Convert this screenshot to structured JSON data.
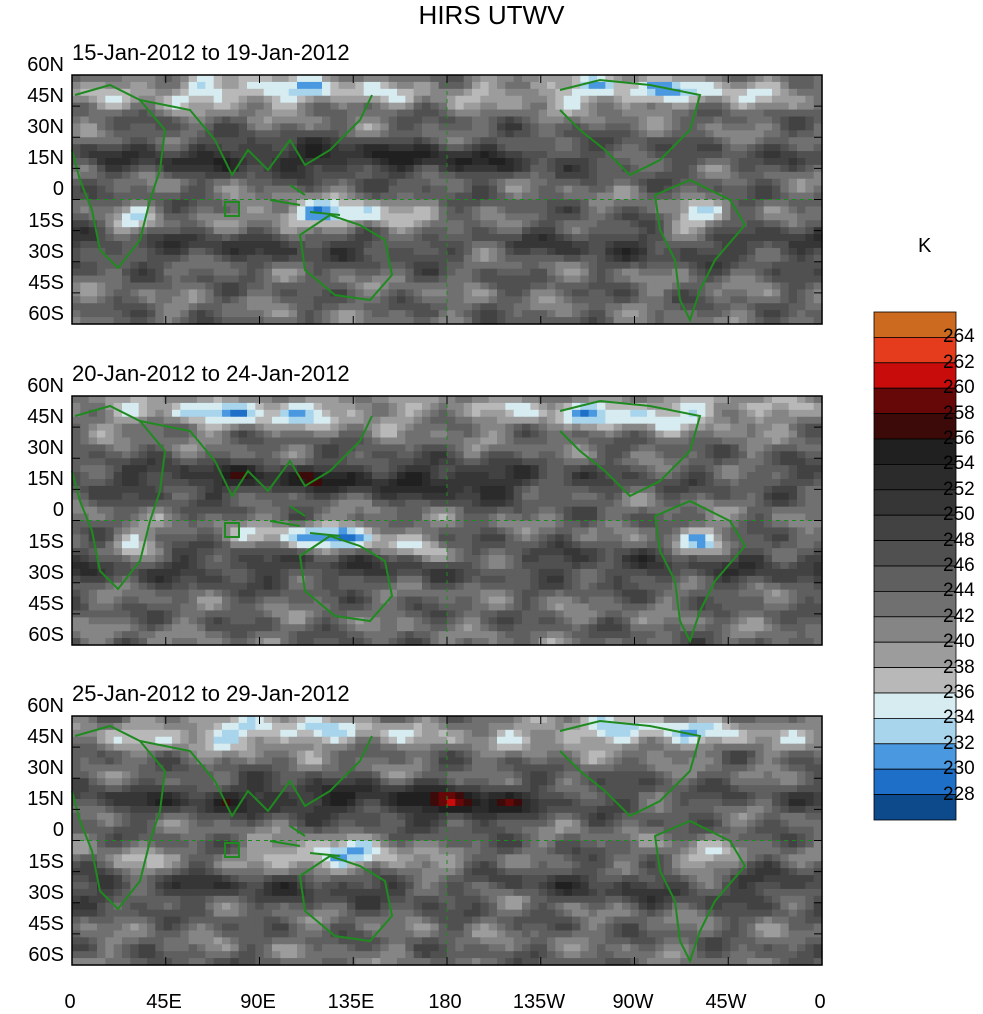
{
  "title": "HIRS UTWV",
  "panels": [
    {
      "label": "15-Jan-2012 to 19-Jan-2012"
    },
    {
      "label": "20-Jan-2012 to 24-Jan-2012"
    },
    {
      "label": "25-Jan-2012 to 29-Jan-2012"
    }
  ],
  "lat_ticks": [
    "60N",
    "45N",
    "30N",
    "15N",
    "0",
    "15S",
    "30S",
    "45S",
    "60S"
  ],
  "lon_ticks": [
    "0",
    "45E",
    "90E",
    "135E",
    "180",
    "135W",
    "90W",
    "45W",
    "0"
  ],
  "colorbar": {
    "unit": "K",
    "labels": [
      "264",
      "262",
      "260",
      "258",
      "256",
      "254",
      "252",
      "250",
      "248",
      "246",
      "244",
      "242",
      "240",
      "238",
      "236",
      "234",
      "232",
      "230",
      "228"
    ],
    "colors": [
      "#1a1a6e",
      "#0d4a8c",
      "#1e6fc7",
      "#4a98e0",
      "#a8d4ec",
      "#d7ecf0",
      "#b8b8b8",
      "#9c9c9c",
      "#858585",
      "#707070",
      "#5f5f5f",
      "#505050",
      "#424242",
      "#363636",
      "#2b2b2b",
      "#202020",
      "#3d0a0a",
      "#660808",
      "#c80c0c",
      "#e63c1e",
      "#cc6a20"
    ]
  },
  "chart_data": {
    "type": "heatmap",
    "variable": "HIRS UTWV",
    "unit": "K",
    "lat_range": [
      -60,
      60
    ],
    "lon_range": [
      0,
      360
    ],
    "levels": [
      228,
      230,
      232,
      234,
      236,
      238,
      240,
      242,
      244,
      246,
      248,
      250,
      252,
      254,
      256,
      258,
      260,
      262,
      264
    ],
    "panels": [
      {
        "period": "15-Jan-2012 to 19-Jan-2012"
      },
      {
        "period": "20-Jan-2012 to 24-Jan-2012"
      },
      {
        "period": "25-Jan-2012 to 29-Jan-2012"
      }
    ]
  }
}
